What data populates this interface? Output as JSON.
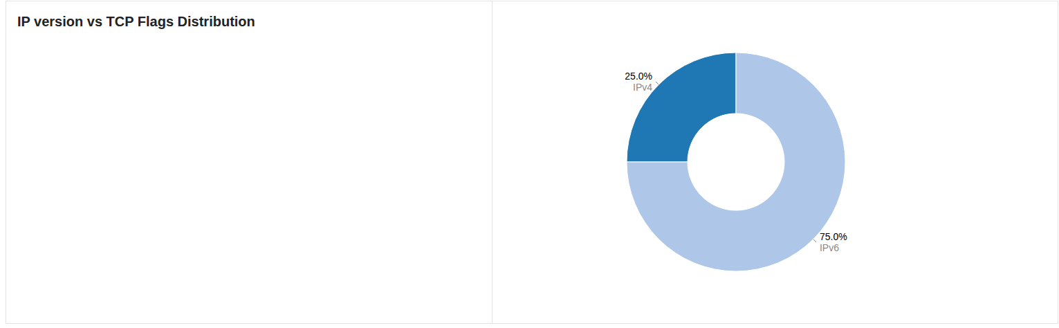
{
  "chart_data": {
    "type": "pie",
    "title": "IP version vs TCP Flags Distribution",
    "categories": [
      "IPv4",
      "IPv6"
    ],
    "values": [
      25,
      75
    ],
    "value_labels": [
      "25.0%",
      "75.0%"
    ],
    "colors": [
      "#1f77b4",
      "#aec7e8"
    ],
    "data_labels": true
  }
}
